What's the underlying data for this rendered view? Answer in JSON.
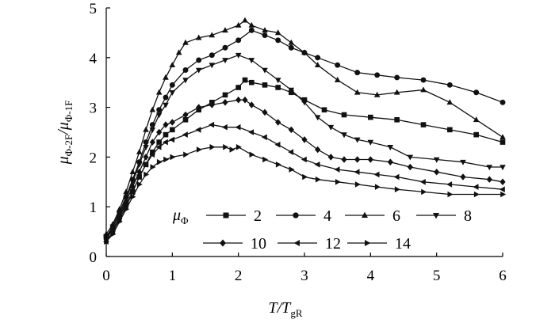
{
  "chart_data": {
    "type": "line",
    "xlabel": "T/T",
    "xlabel_sub": "gR",
    "ylabel_parts": [
      "μ",
      "Φ-2F",
      "/μ",
      "Φ-1F"
    ],
    "xlim": [
      0,
      6
    ],
    "ylim": [
      0,
      5
    ],
    "xticks": [
      "0",
      "1",
      "2",
      "3",
      "4",
      "5",
      "6"
    ],
    "yticks": [
      "0",
      "1",
      "2",
      "3",
      "4",
      "5"
    ],
    "grid": false,
    "legend_position": "lower-right",
    "legend_title": "μ",
    "legend_title_sub": "Φ",
    "series": [
      {
        "name": "2",
        "marker": "square",
        "x": [
          0,
          0.1,
          0.2,
          0.3,
          0.4,
          0.5,
          0.6,
          0.7,
          0.8,
          0.9,
          1.0,
          1.2,
          1.4,
          1.6,
          1.8,
          2.0,
          2.1,
          2.2,
          2.4,
          2.6,
          2.8,
          3.0,
          3.3,
          3.6,
          4.0,
          4.4,
          4.8,
          5.2,
          5.6,
          6.0
        ],
        "y": [
          0.4,
          0.55,
          0.8,
          1.05,
          1.3,
          1.6,
          1.85,
          2.1,
          2.3,
          2.45,
          2.55,
          2.75,
          2.95,
          3.1,
          3.25,
          3.4,
          3.55,
          3.5,
          3.45,
          3.4,
          3.3,
          3.15,
          2.95,
          2.85,
          2.8,
          2.75,
          2.65,
          2.55,
          2.45,
          2.3
        ]
      },
      {
        "name": "4",
        "marker": "circle",
        "x": [
          0,
          0.1,
          0.2,
          0.3,
          0.4,
          0.5,
          0.6,
          0.7,
          0.8,
          0.9,
          1.0,
          1.2,
          1.4,
          1.6,
          1.8,
          2.0,
          2.2,
          2.4,
          2.6,
          2.8,
          3.0,
          3.2,
          3.5,
          3.8,
          4.1,
          4.4,
          4.8,
          5.2,
          5.6,
          6.0
        ],
        "y": [
          0.4,
          0.6,
          0.9,
          1.2,
          1.55,
          1.9,
          2.3,
          2.65,
          2.95,
          3.2,
          3.45,
          3.75,
          3.95,
          4.05,
          4.2,
          4.35,
          4.55,
          4.45,
          4.35,
          4.2,
          4.1,
          4.0,
          3.85,
          3.7,
          3.65,
          3.6,
          3.55,
          3.45,
          3.3,
          3.1
        ]
      },
      {
        "name": "6",
        "marker": "triangle-up",
        "x": [
          0,
          0.1,
          0.2,
          0.3,
          0.4,
          0.5,
          0.6,
          0.7,
          0.8,
          0.9,
          1.0,
          1.1,
          1.2,
          1.4,
          1.6,
          1.8,
          2.0,
          2.1,
          2.2,
          2.4,
          2.6,
          2.8,
          3.0,
          3.2,
          3.5,
          3.8,
          4.1,
          4.4,
          4.8,
          5.2,
          5.6,
          6.0
        ],
        "y": [
          0.45,
          0.65,
          0.95,
          1.3,
          1.7,
          2.1,
          2.55,
          2.95,
          3.3,
          3.6,
          3.85,
          4.1,
          4.3,
          4.4,
          4.45,
          4.55,
          4.65,
          4.75,
          4.65,
          4.55,
          4.5,
          4.3,
          4.1,
          3.85,
          3.55,
          3.3,
          3.25,
          3.3,
          3.35,
          3.1,
          2.75,
          2.4
        ]
      },
      {
        "name": "8",
        "marker": "triangle-down",
        "x": [
          0,
          0.1,
          0.2,
          0.3,
          0.4,
          0.5,
          0.6,
          0.7,
          0.8,
          0.9,
          1.0,
          1.2,
          1.4,
          1.6,
          1.8,
          2.0,
          2.2,
          2.4,
          2.6,
          2.8,
          3.0,
          3.2,
          3.4,
          3.6,
          3.8,
          4.0,
          4.3,
          4.6,
          5.0,
          5.4,
          5.8,
          6.0
        ],
        "y": [
          0.4,
          0.6,
          0.85,
          1.15,
          1.5,
          1.85,
          2.2,
          2.55,
          2.85,
          3.05,
          3.3,
          3.55,
          3.75,
          3.85,
          3.95,
          4.05,
          3.95,
          3.75,
          3.55,
          3.35,
          3.1,
          2.8,
          2.6,
          2.45,
          2.35,
          2.3,
          2.2,
          2.0,
          1.95,
          1.9,
          1.8,
          1.8
        ]
      },
      {
        "name": "10",
        "marker": "diamond",
        "x": [
          0,
          0.1,
          0.2,
          0.3,
          0.4,
          0.5,
          0.6,
          0.7,
          0.8,
          0.9,
          1.0,
          1.2,
          1.4,
          1.6,
          1.8,
          2.0,
          2.1,
          2.2,
          2.4,
          2.6,
          2.8,
          3.0,
          3.2,
          3.4,
          3.6,
          3.8,
          4.0,
          4.3,
          4.6,
          5.0,
          5.4,
          5.8,
          6.0
        ],
        "y": [
          0.35,
          0.55,
          0.8,
          1.1,
          1.4,
          1.7,
          2.0,
          2.3,
          2.5,
          2.65,
          2.7,
          2.85,
          3.0,
          3.05,
          3.1,
          3.15,
          3.15,
          3.05,
          2.9,
          2.7,
          2.55,
          2.35,
          2.15,
          2.0,
          1.95,
          1.95,
          1.95,
          1.9,
          1.8,
          1.7,
          1.6,
          1.55,
          1.5
        ]
      },
      {
        "name": "12",
        "marker": "triangle-left",
        "x": [
          0,
          0.1,
          0.2,
          0.3,
          0.4,
          0.5,
          0.6,
          0.7,
          0.8,
          0.9,
          1.0,
          1.2,
          1.4,
          1.6,
          1.8,
          2.0,
          2.2,
          2.4,
          2.6,
          2.8,
          3.0,
          3.2,
          3.5,
          3.8,
          4.1,
          4.4,
          4.8,
          5.2,
          5.6,
          6.0
        ],
        "y": [
          0.3,
          0.5,
          0.75,
          1.0,
          1.3,
          1.6,
          1.85,
          2.05,
          2.2,
          2.3,
          2.35,
          2.45,
          2.55,
          2.65,
          2.6,
          2.6,
          2.5,
          2.4,
          2.25,
          2.1,
          1.95,
          1.85,
          1.75,
          1.7,
          1.65,
          1.6,
          1.5,
          1.45,
          1.4,
          1.35
        ]
      },
      {
        "name": "14",
        "marker": "triangle-right",
        "x": [
          0,
          0.1,
          0.2,
          0.3,
          0.4,
          0.5,
          0.6,
          0.7,
          0.8,
          0.9,
          1.0,
          1.2,
          1.4,
          1.6,
          1.8,
          1.9,
          2.0,
          2.2,
          2.4,
          2.6,
          2.8,
          3.0,
          3.2,
          3.5,
          3.8,
          4.1,
          4.4,
          4.8,
          5.2,
          5.6,
          6.0
        ],
        "y": [
          0.3,
          0.45,
          0.7,
          0.95,
          1.2,
          1.45,
          1.65,
          1.8,
          1.9,
          1.95,
          2.0,
          2.05,
          2.15,
          2.2,
          2.2,
          2.15,
          2.2,
          2.05,
          1.95,
          1.85,
          1.75,
          1.6,
          1.55,
          1.5,
          1.45,
          1.4,
          1.35,
          1.3,
          1.25,
          1.25,
          1.25
        ]
      }
    ]
  }
}
